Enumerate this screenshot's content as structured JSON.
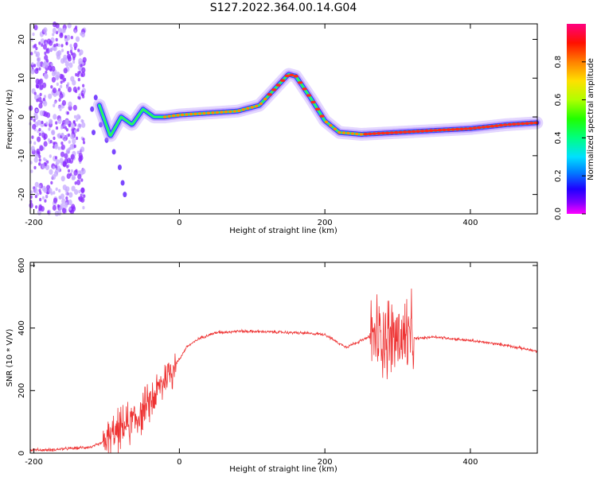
{
  "page_title": "S127.2022.364.00.14.G04",
  "colors": {
    "snr_line": "#ee3333",
    "spectro_ridge": "#ff2a1a",
    "spectro_halo_outer": "#b38cff",
    "spectro_halo_mid": "#3d1cff",
    "noise_blob": "#8a2cff"
  },
  "chart_data": [
    {
      "type": "heatmap",
      "title": "S127.2022.364.00.14.G04",
      "xlabel": "Height of straight line (km)",
      "ylabel": "Frequency (Hz)",
      "xlim": [
        -205,
        492
      ],
      "ylim": [
        -25,
        24
      ],
      "x_ticks": [
        -200,
        0,
        200,
        400
      ],
      "y_ticks": [
        -20,
        -10,
        0,
        10,
        20
      ],
      "colorbar": {
        "label": "Normalized spectral amplitude",
        "range": [
          0,
          1
        ],
        "ticks": [
          0.0,
          0.2,
          0.4,
          0.6,
          0.8
        ],
        "colormap": "rainbow (magenta-blue-cyan-green-yellow-red-magenta)"
      },
      "ridge": {
        "x": [
          -110,
          -95,
          -80,
          -65,
          -50,
          -35,
          -20,
          0,
          40,
          80,
          110,
          130,
          150,
          160,
          180,
          200,
          220,
          250,
          300,
          350,
          400,
          450,
          492
        ],
        "y": [
          3,
          -5,
          0,
          -2,
          2,
          0,
          0,
          0.5,
          1,
          1.5,
          3,
          7,
          11,
          10.5,
          5,
          -1,
          -4,
          -4.5,
          -4,
          -3.5,
          -3,
          -2,
          -1.5
        ]
      },
      "noise_region_x": [
        -205,
        -130
      ]
    },
    {
      "type": "line",
      "xlabel": "Height of straight line (km)",
      "ylabel": "SNR (10 * V/V)",
      "xlim": [
        -205,
        492
      ],
      "ylim": [
        0,
        610
      ],
      "x_ticks": [
        -200,
        0,
        200,
        400
      ],
      "y_ticks": [
        0,
        200,
        400,
        600
      ],
      "series": [
        {
          "x": [
            -205,
            -180,
            -150,
            -120,
            -100,
            -80,
            -60,
            -40,
            -25,
            -10,
            0,
            10,
            30,
            50,
            80,
            120,
            160,
            200,
            220,
            230,
            240,
            250,
            260,
            280,
            300,
            320,
            350,
            400,
            450,
            492
          ],
          "y": [
            10,
            10,
            15,
            20,
            40,
            80,
            110,
            160,
            220,
            270,
            300,
            340,
            370,
            385,
            390,
            388,
            385,
            380,
            350,
            340,
            350,
            360,
            370,
            375,
            370,
            365,
            372,
            360,
            345,
            325
          ],
          "noisy_segments": [
            {
              "x_range": [
                -105,
                -5
              ],
              "spread": 110
            },
            {
              "x_range": [
                262,
                322
              ],
              "spread": 230
            }
          ]
        }
      ]
    }
  ]
}
